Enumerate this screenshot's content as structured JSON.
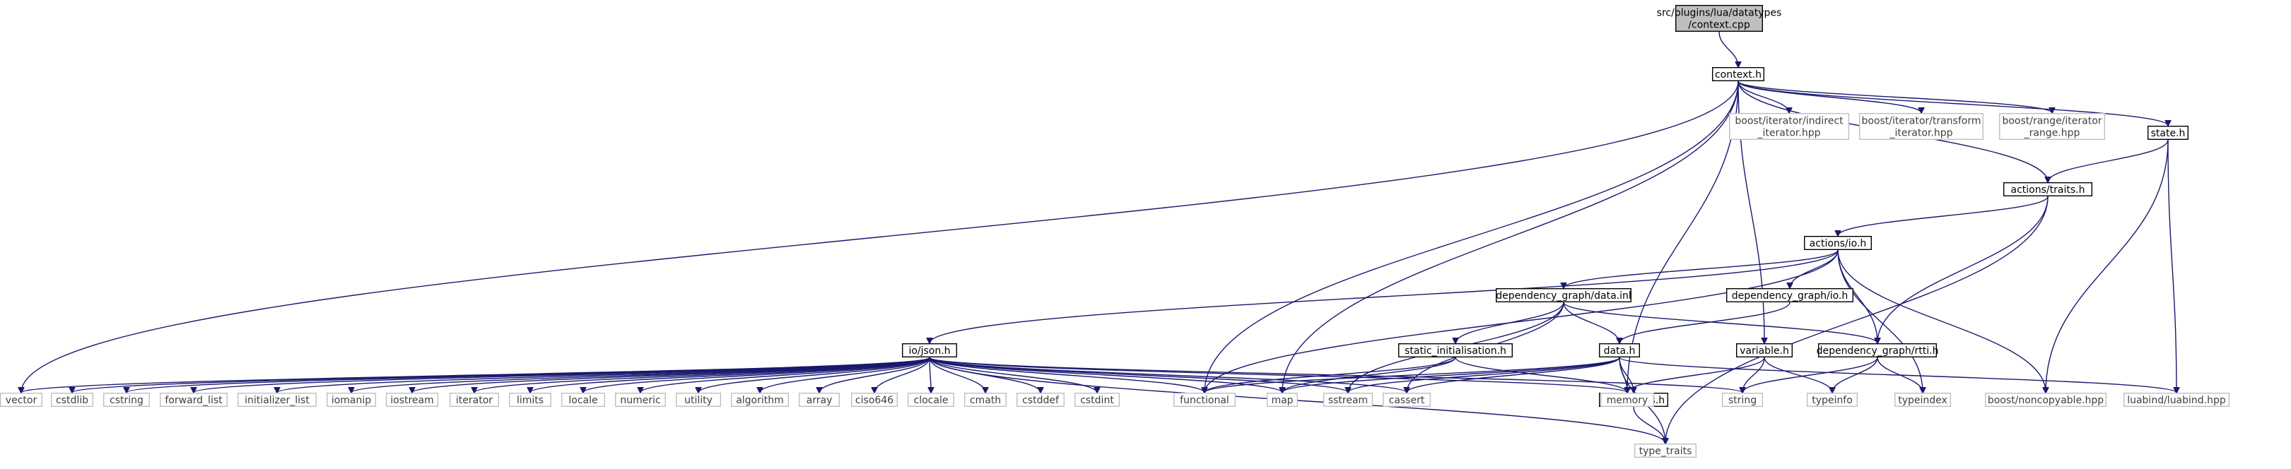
{
  "colors": {
    "edge": "#191970",
    "root_fill": "#bfbfbf",
    "local_border": "#000000",
    "external_border": "#bfbfbf",
    "external_text": "#3f3f3f"
  },
  "nodes": {
    "context_cpp": [
      "src/plugins/lua/datatypes",
      "/context.cpp"
    ],
    "context_h": [
      "context.h"
    ],
    "indirect_iterator": [
      "boost/iterator/indirect",
      "_iterator.hpp"
    ],
    "transform_iterator": [
      "boost/iterator/transform",
      "_iterator.hpp"
    ],
    "iterator_range": [
      "boost/range/iterator",
      "_range.hpp"
    ],
    "state_h": [
      "state.h"
    ],
    "actions_traits_h": [
      "actions/traits.h"
    ],
    "actions_io_h": [
      "actions/io.h"
    ],
    "dg_data_inl": [
      "dependency_graph/data.inl"
    ],
    "dg_io_h": [
      "dependency_graph/io.h"
    ],
    "io_json_h": [
      "io/json.h"
    ],
    "static_init_h": [
      "static_initialisation.h"
    ],
    "data_h": [
      "data.h"
    ],
    "variable_h": [
      "variable.h"
    ],
    "dg_rtti_h": [
      "dependency_graph/rtti.h"
    ],
    "data_traits_h": [
      "data_traits.h"
    ],
    "vector": [
      "vector"
    ],
    "cstdlib": [
      "cstdlib"
    ],
    "cstring": [
      "cstring"
    ],
    "forward_list": [
      "forward_list"
    ],
    "initializer_list": [
      "initializer_list"
    ],
    "iomanip": [
      "iomanip"
    ],
    "iostream": [
      "iostream"
    ],
    "iterator": [
      "iterator"
    ],
    "limits": [
      "limits"
    ],
    "locale": [
      "locale"
    ],
    "numeric": [
      "numeric"
    ],
    "utility": [
      "utility"
    ],
    "algorithm": [
      "algorithm"
    ],
    "array": [
      "array"
    ],
    "ciso646": [
      "ciso646"
    ],
    "clocale": [
      "clocale"
    ],
    "cmath": [
      "cmath"
    ],
    "cstddef": [
      "cstddef"
    ],
    "cstdint": [
      "cstdint"
    ],
    "functional": [
      "functional"
    ],
    "map": [
      "map"
    ],
    "sstream": [
      "sstream"
    ],
    "cassert": [
      "cassert"
    ],
    "memory": [
      "memory"
    ],
    "string": [
      "string"
    ],
    "typeinfo": [
      "typeinfo"
    ],
    "typeindex": [
      "typeindex"
    ],
    "noncopyable": [
      "boost/noncopyable.hpp"
    ],
    "luabind": [
      "luabind/luabind.hpp"
    ],
    "type_traits": [
      "type_traits"
    ]
  }
}
